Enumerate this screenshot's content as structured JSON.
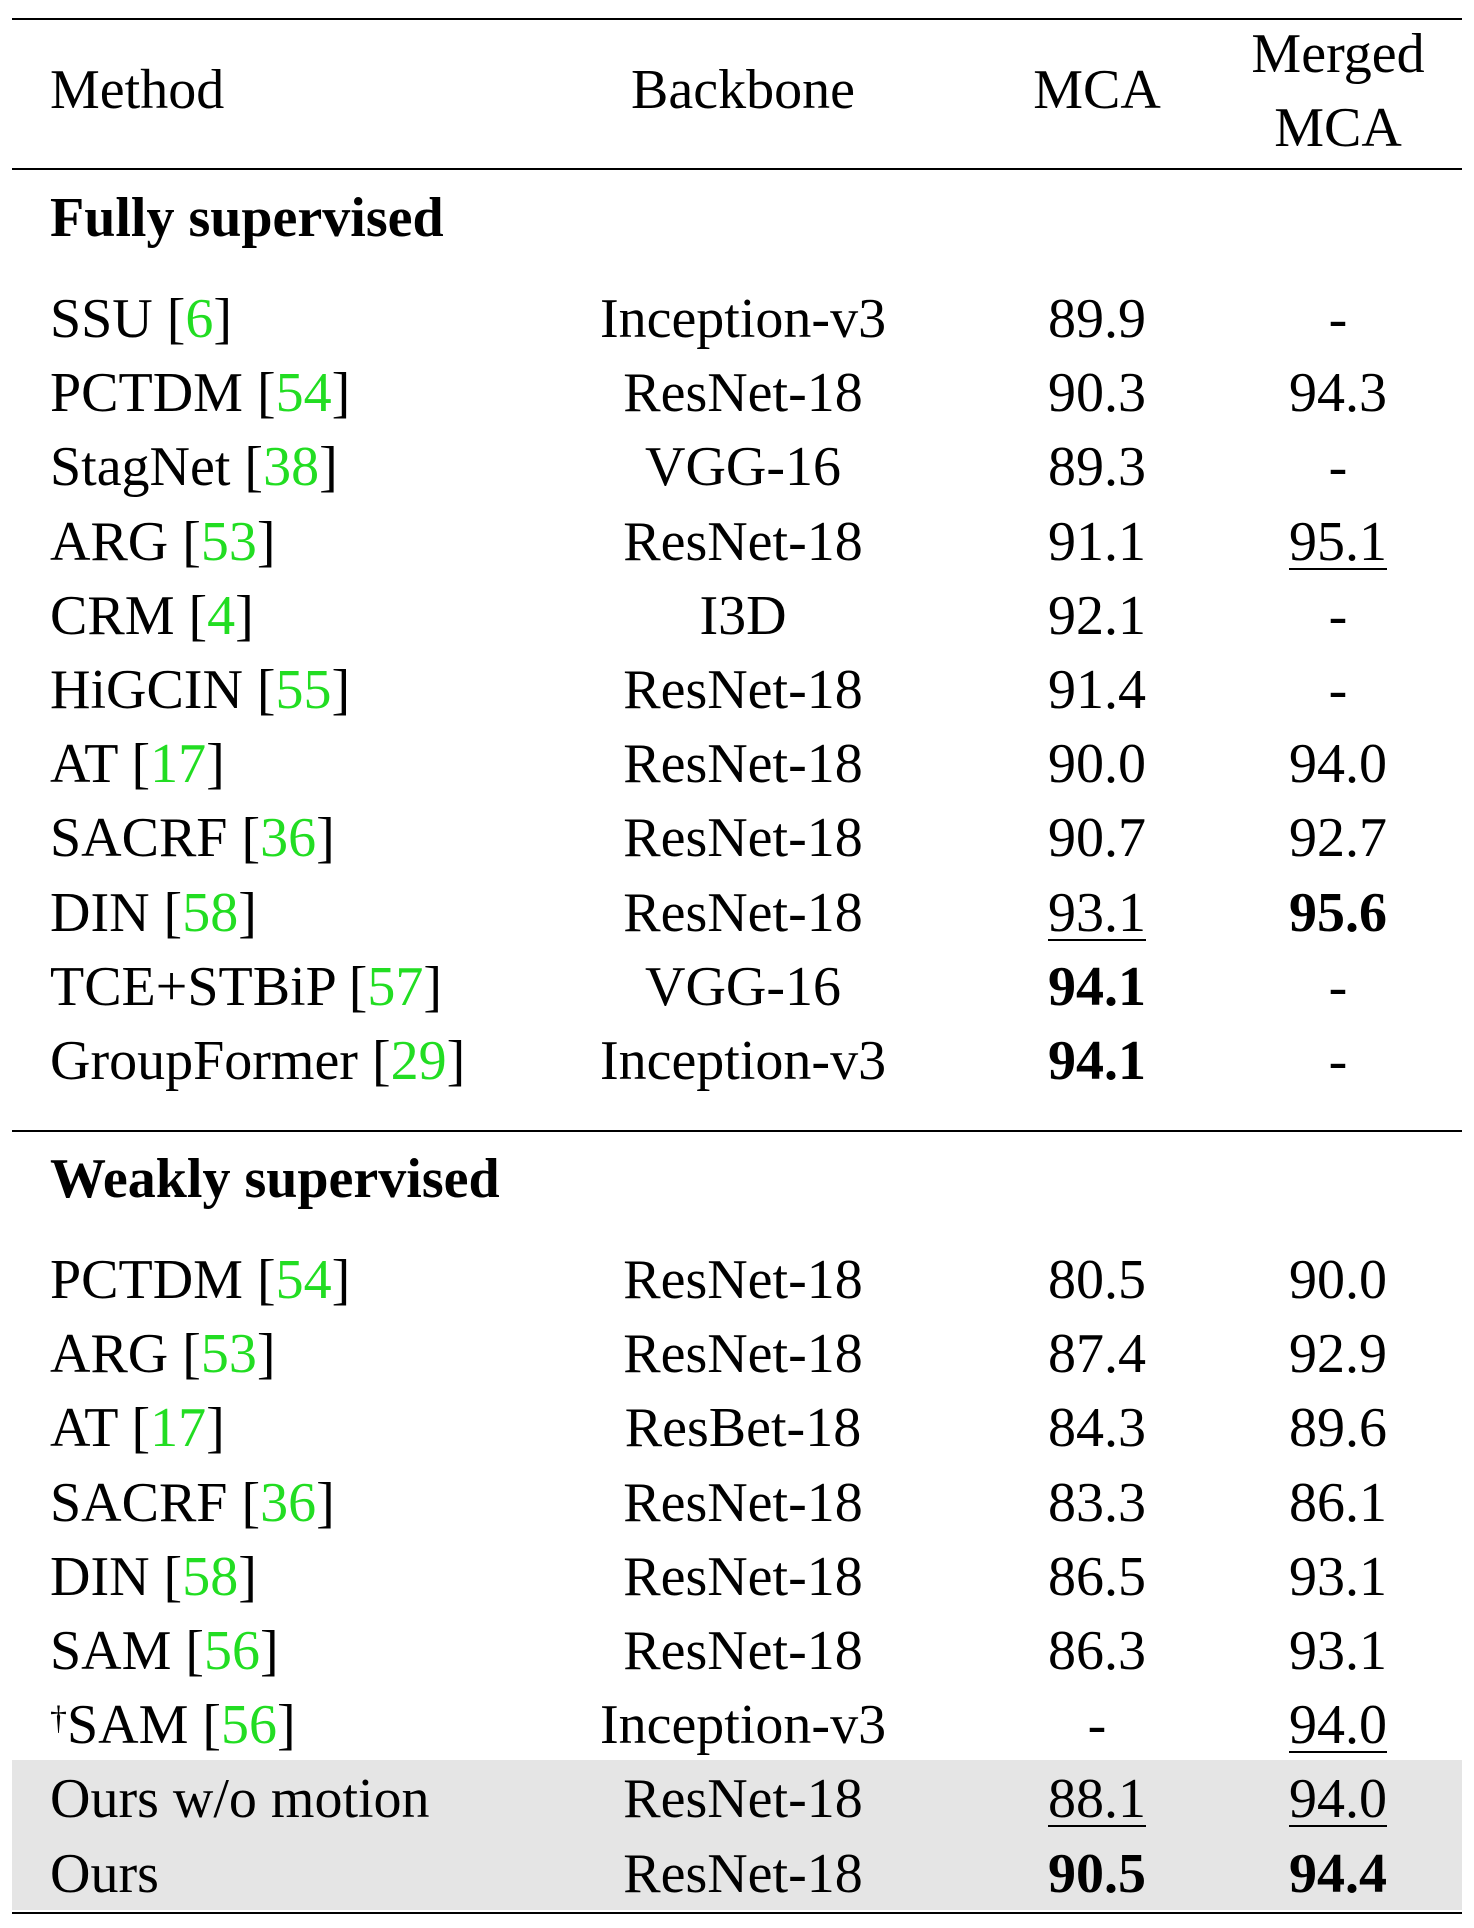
{
  "header": {
    "method": "Method",
    "backbone": "Backbone",
    "mca": "MCA",
    "merged_mca_line1": "Merged",
    "merged_mca_line2": "MCA"
  },
  "sections": [
    {
      "title": "Fully supervised",
      "rows": [
        {
          "method": "SSU ",
          "cite": "6",
          "backbone": "Inception-v3",
          "mca": "89.9",
          "mca_style": "",
          "merged": "-",
          "merged_style": "",
          "dagger": ""
        },
        {
          "method": "PCTDM ",
          "cite": "54",
          "backbone": "ResNet-18",
          "mca": "90.3",
          "mca_style": "",
          "merged": "94.3",
          "merged_style": "",
          "dagger": ""
        },
        {
          "method": "StagNet ",
          "cite": "38",
          "backbone": "VGG-16",
          "mca": "89.3",
          "mca_style": "",
          "merged": "-",
          "merged_style": "",
          "dagger": ""
        },
        {
          "method": "ARG ",
          "cite": "53",
          "backbone": "ResNet-18",
          "mca": "91.1",
          "mca_style": "",
          "merged": "95.1",
          "merged_style": "ul",
          "dagger": ""
        },
        {
          "method": "CRM ",
          "cite": "4",
          "backbone": "I3D",
          "mca": "92.1",
          "mca_style": "",
          "merged": "-",
          "merged_style": "",
          "dagger": ""
        },
        {
          "method": "HiGCIN ",
          "cite": "55",
          "backbone": "ResNet-18",
          "mca": "91.4",
          "mca_style": "",
          "merged": "-",
          "merged_style": "",
          "dagger": ""
        },
        {
          "method": "AT ",
          "cite": "17",
          "backbone": "ResNet-18",
          "mca": "90.0",
          "mca_style": "",
          "merged": "94.0",
          "merged_style": "",
          "dagger": ""
        },
        {
          "method": "SACRF ",
          "cite": "36",
          "backbone": "ResNet-18",
          "mca": "90.7",
          "mca_style": "",
          "merged": "92.7",
          "merged_style": "",
          "dagger": ""
        },
        {
          "method": "DIN ",
          "cite": "58",
          "backbone": "ResNet-18",
          "mca": "93.1",
          "mca_style": "ul",
          "merged": "95.6",
          "merged_style": "bold",
          "dagger": ""
        },
        {
          "method": "TCE+STBiP ",
          "cite": "57",
          "backbone": "VGG-16",
          "mca": "94.1",
          "mca_style": "bold",
          "merged": "-",
          "merged_style": "",
          "dagger": ""
        },
        {
          "method": "GroupFormer ",
          "cite": "29",
          "backbone": "Inception-v3",
          "mca": "94.1",
          "mca_style": "bold",
          "merged": "-",
          "merged_style": "",
          "dagger": ""
        }
      ]
    },
    {
      "title": "Weakly supervised",
      "rows": [
        {
          "method": "PCTDM ",
          "cite": "54",
          "backbone": "ResNet-18",
          "mca": "80.5",
          "mca_style": "",
          "merged": "90.0",
          "merged_style": "",
          "dagger": ""
        },
        {
          "method": "ARG ",
          "cite": "53",
          "backbone": "ResNet-18",
          "mca": "87.4",
          "mca_style": "",
          "merged": "92.9",
          "merged_style": "",
          "dagger": ""
        },
        {
          "method": "AT ",
          "cite": "17",
          "backbone": "ResBet-18",
          "mca": "84.3",
          "mca_style": "",
          "merged": "89.6",
          "merged_style": "",
          "dagger": ""
        },
        {
          "method": "SACRF ",
          "cite": "36",
          "backbone": "ResNet-18",
          "mca": "83.3",
          "mca_style": "",
          "merged": "86.1",
          "merged_style": "",
          "dagger": ""
        },
        {
          "method": "DIN ",
          "cite": "58",
          "backbone": "ResNet-18",
          "mca": "86.5",
          "mca_style": "",
          "merged": "93.1",
          "merged_style": "",
          "dagger": ""
        },
        {
          "method": "SAM ",
          "cite": "56",
          "backbone": "ResNet-18",
          "mca": "86.3",
          "mca_style": "",
          "merged": "93.1",
          "merged_style": "",
          "dagger": ""
        },
        {
          "method": "SAM ",
          "cite": "56",
          "backbone": "Inception-v3",
          "mca": "-",
          "mca_style": "",
          "merged": "94.0",
          "merged_style": "ul",
          "dagger": "†"
        },
        {
          "method": "Ours w/o motion",
          "cite": "",
          "backbone": "ResNet-18",
          "mca": "88.1",
          "mca_style": "ul",
          "merged": "94.0",
          "merged_style": "ul",
          "dagger": "",
          "highlight": true
        },
        {
          "method": "Ours",
          "cite": "",
          "backbone": "ResNet-18",
          "mca": "90.5",
          "mca_style": "bold",
          "merged": "94.4",
          "merged_style": "bold",
          "dagger": "",
          "highlight": true
        }
      ]
    }
  ]
}
